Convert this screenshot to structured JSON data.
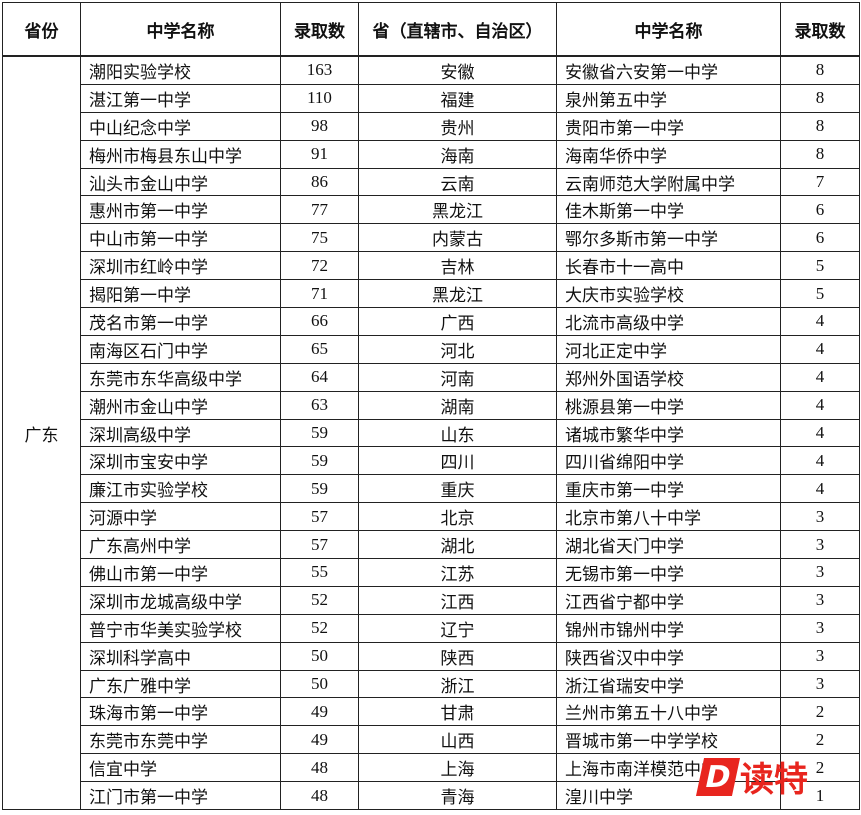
{
  "table": {
    "header": [
      "省份",
      "中学名称",
      "录取数",
      "省（直辖市、自治区）",
      "中学名称",
      "录取数"
    ],
    "province": "广东",
    "rows": [
      [
        "潮阳实验学校",
        163,
        "安徽",
        "安徽省六安第一中学",
        8
      ],
      [
        "湛江第一中学",
        110,
        "福建",
        "泉州第五中学",
        8
      ],
      [
        "中山纪念中学",
        98,
        "贵州",
        "贵阳市第一中学",
        8
      ],
      [
        "梅州市梅县东山中学",
        91,
        "海南",
        "海南华侨中学",
        8
      ],
      [
        "汕头市金山中学",
        86,
        "云南",
        "云南师范大学附属中学",
        7
      ],
      [
        "惠州市第一中学",
        77,
        "黑龙江",
        "佳木斯第一中学",
        6
      ],
      [
        "中山市第一中学",
        75,
        "内蒙古",
        "鄂尔多斯市第一中学",
        6
      ],
      [
        "深圳市红岭中学",
        72,
        "吉林",
        "长春市十一高中",
        5
      ],
      [
        "揭阳第一中学",
        71,
        "黑龙江",
        "大庆市实验学校",
        5
      ],
      [
        "茂名市第一中学",
        66,
        "广西",
        "北流市高级中学",
        4
      ],
      [
        "南海区石门中学",
        65,
        "河北",
        "河北正定中学",
        4
      ],
      [
        "东莞市东华高级中学",
        64,
        "河南",
        "郑州外国语学校",
        4
      ],
      [
        "潮州市金山中学",
        63,
        "湖南",
        "桃源县第一中学",
        4
      ],
      [
        "深圳高级中学",
        59,
        "山东",
        "诸城市繁华中学",
        4
      ],
      [
        "深圳市宝安中学",
        59,
        "四川",
        "四川省绵阳中学",
        4
      ],
      [
        "廉江市实验学校",
        59,
        "重庆",
        "重庆市第一中学",
        4
      ],
      [
        "河源中学",
        57,
        "北京",
        "北京市第八十中学",
        3
      ],
      [
        "广东高州中学",
        57,
        "湖北",
        "湖北省天门中学",
        3
      ],
      [
        "佛山市第一中学",
        55,
        "江苏",
        "无锡市第一中学",
        3
      ],
      [
        "深圳市龙城高级中学",
        52,
        "江西",
        "江西省宁都中学",
        3
      ],
      [
        "普宁市华美实验学校",
        52,
        "辽宁",
        "锦州市锦州中学",
        3
      ],
      [
        "深圳科学高中",
        50,
        "陕西",
        "陕西省汉中中学",
        3
      ],
      [
        "广东广雅中学",
        50,
        "浙江",
        "浙江省瑞安中学",
        3
      ],
      [
        "珠海市第一中学",
        49,
        "甘肃",
        "兰州市第五十八中学",
        2
      ],
      [
        "东莞市东莞中学",
        49,
        "山西",
        "晋城市第一中学学校",
        2
      ],
      [
        "信宜中学",
        48,
        "上海",
        "上海市南洋模范中学",
        2
      ],
      [
        "江门市第一中学",
        48,
        "青海",
        "湟川中学",
        1
      ]
    ]
  },
  "watermark": {
    "logo": "D",
    "text": "读特"
  }
}
